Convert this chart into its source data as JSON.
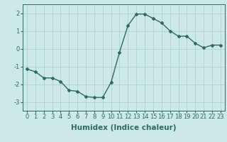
{
  "x": [
    0,
    1,
    2,
    3,
    4,
    5,
    6,
    7,
    8,
    9,
    10,
    11,
    12,
    13,
    14,
    15,
    16,
    17,
    18,
    19,
    20,
    21,
    22,
    23
  ],
  "y": [
    -1.15,
    -1.3,
    -1.65,
    -1.65,
    -1.85,
    -2.35,
    -2.4,
    -2.7,
    -2.75,
    -2.75,
    -1.9,
    -0.2,
    1.3,
    1.95,
    1.95,
    1.7,
    1.45,
    1.0,
    0.7,
    0.7,
    0.3,
    0.05,
    0.2,
    0.2
  ],
  "line_color": "#2e6b5e",
  "marker": "D",
  "marker_size": 2.0,
  "background_color": "#cce8e8",
  "grid_color": "#aacccc",
  "xlabel": "Humidex (Indice chaleur)",
  "ylabel": "",
  "xlim": [
    -0.5,
    23.5
  ],
  "ylim": [
    -3.5,
    2.5
  ],
  "yticks": [
    -3,
    -2,
    -1,
    0,
    1,
    2
  ],
  "xticks": [
    0,
    1,
    2,
    3,
    4,
    5,
    6,
    7,
    8,
    9,
    10,
    11,
    12,
    13,
    14,
    15,
    16,
    17,
    18,
    19,
    20,
    21,
    22,
    23
  ],
  "tick_fontsize": 6,
  "xlabel_fontsize": 7.5,
  "linewidth": 1.0
}
